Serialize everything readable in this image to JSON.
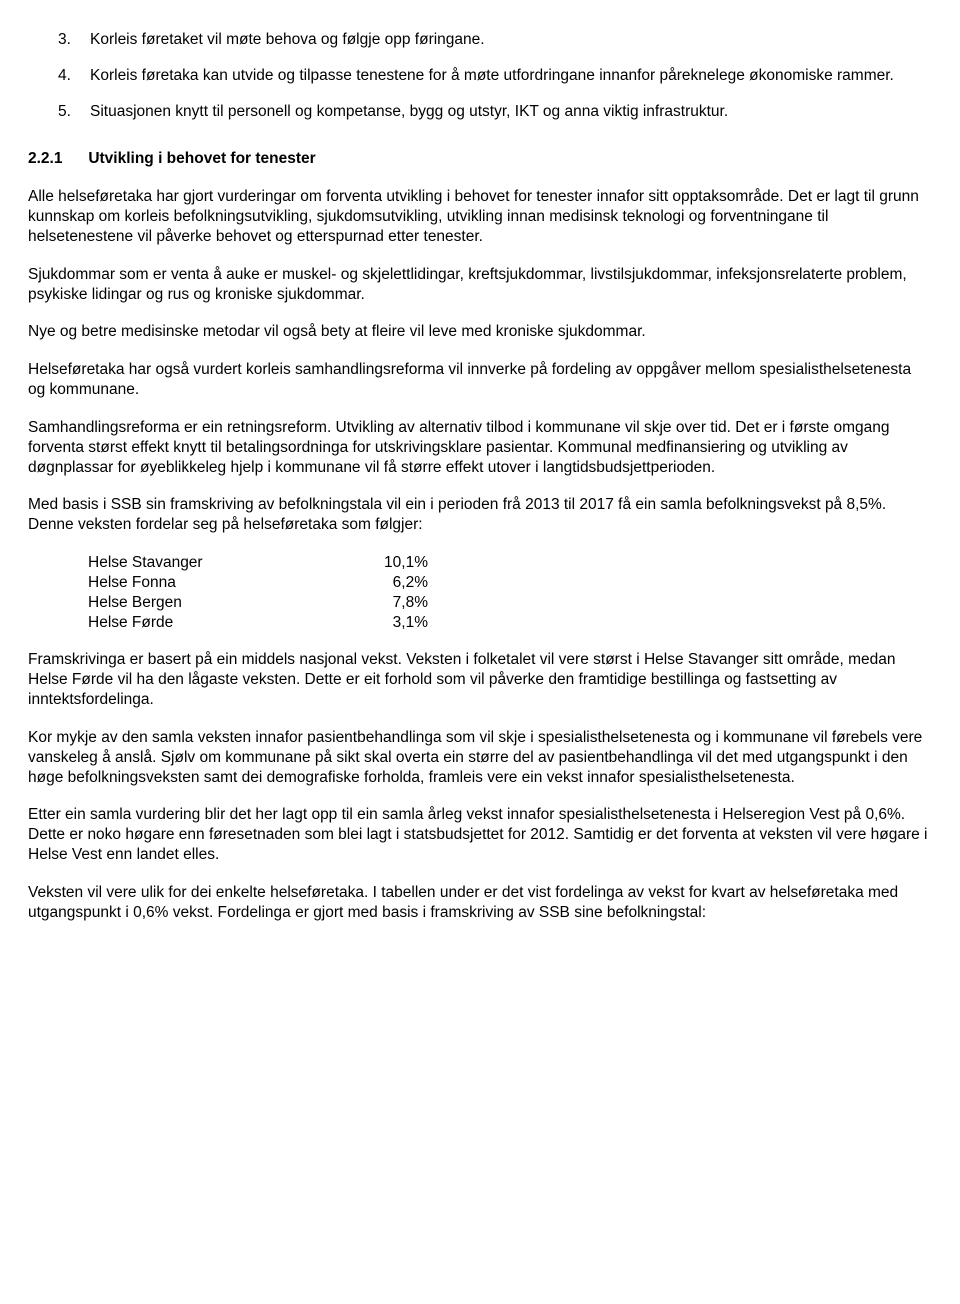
{
  "list": {
    "items": [
      {
        "num": "3.",
        "text": "Korleis føretaket vil møte behova og følgje opp føringane."
      },
      {
        "num": "4.",
        "text": "Korleis føretaka kan utvide og tilpasse tenestene for å møte utfordringane innanfor påreknelege økonomiske rammer."
      },
      {
        "num": "5.",
        "text": "Situasjonen knytt til personell og kompetanse, bygg og utstyr, IKT og anna viktig infrastruktur."
      }
    ]
  },
  "section": {
    "num": "2.2.1",
    "title": "Utvikling i behovet for tenester"
  },
  "paragraphs": {
    "p1": "Alle helseføretaka har gjort vurderingar om forventa utvikling i behovet for tenester innafor sitt opptaksområde. Det er lagt til grunn kunnskap om korleis befolkningsutvikling, sjukdomsutvikling, utvikling innan medisinsk teknologi og forventningane til helsetenestene vil påverke behovet og etterspurnad etter tenester.",
    "p2": "Sjukdommar som er venta å auke er muskel- og skjelettlidingar, kreftsjukdommar, livstilsjukdommar, infeksjonsrelaterte problem, psykiske lidingar og rus og kroniske sjukdommar.",
    "p3": "Nye og betre medisinske metodar vil også bety at fleire vil leve med kroniske sjukdommar.",
    "p4": "Helseføretaka har også vurdert korleis samhandlingsreforma vil innverke på fordeling av oppgåver mellom spesialisthelsetenesta og kommunane.",
    "p5": "Samhandlingsreforma er ein retningsreform. Utvikling av alternativ tilbod i kommunane vil skje over tid. Det er i første omgang forventa størst effekt knytt til betalingsordninga for utskrivingsklare pasientar. Kommunal medfinansiering og utvikling av døgnplassar for øyeblikkeleg hjelp i kommunane vil få større effekt utover i langtidsbudsjettperioden.",
    "p6": " Med basis i SSB sin framskriving av befolkningstala vil ein i perioden frå 2013 til 2017 få ein samla befolkningsvekst på 8,5%. Denne veksten fordelar seg på helseføretaka som følgjer:",
    "p7": "Framskrivinga er basert på ein middels nasjonal vekst. Veksten i folketalet vil vere størst i Helse Stavanger sitt område, medan Helse Førde vil ha den lågaste veksten. Dette er eit forhold som vil påverke den framtidige bestillinga og fastsetting av inntektsfordelinga.",
    "p8": "Kor mykje av den samla veksten innafor pasientbehandlinga som vil skje i spesialisthelsetenesta og i kommunane vil førebels vere vanskeleg å anslå. Sjølv om kommunane på sikt skal overta ein større del av pasientbehandlinga vil det med utgangspunkt i den høge befolkningsveksten samt dei demografiske forholda, framleis vere ein vekst innafor spesialisthelsetenesta.",
    "p9": "Etter ein samla vurdering blir det her lagt opp til ein samla årleg vekst innafor spesialisthelsetenesta i Helseregion Vest på 0,6%. Dette er noko høgare enn føresetnaden som blei lagt i statsbudsjettet for 2012. Samtidig er det forventa at veksten vil vere høgare i Helse Vest enn landet elles.",
    "p10": "Veksten vil vere ulik for dei enkelte helseføretaka. I tabellen under er det vist fordelinga av vekst for kvart av helseføretaka med utgangspunkt i 0,6% vekst. Fordelinga er gjort med basis i framskriving av SSB sine befolkningstal:"
  },
  "population": {
    "rows": [
      {
        "name": "Helse Stavanger",
        "value": "10,1%"
      },
      {
        "name": "Helse Fonna",
        "value": "6,2%"
      },
      {
        "name": "Helse Bergen",
        "value": "7,8%"
      },
      {
        "name": "Helse Førde",
        "value": "3,1%"
      }
    ]
  }
}
